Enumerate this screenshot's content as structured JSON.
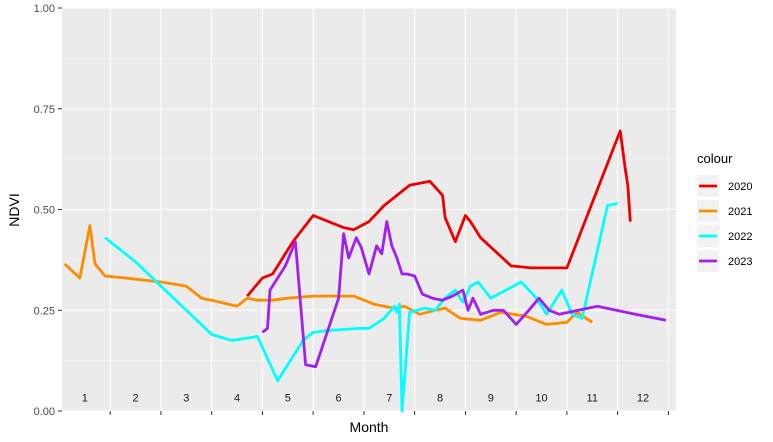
{
  "chart_data": {
    "type": "line",
    "title": "",
    "xlabel": "Month",
    "ylabel": "NDVI",
    "ylim": [
      0,
      1
    ],
    "xlim": [
      0.55,
      12.65
    ],
    "yticks": [
      {
        "value": 0,
        "label": "0.00"
      },
      {
        "value": 0.25,
        "label": "0.25"
      },
      {
        "value": 0.5,
        "label": "0.50"
      },
      {
        "value": 0.75,
        "label": "0.75"
      },
      {
        "value": 1,
        "label": "1.00"
      }
    ],
    "month_labels": [
      "1",
      "2",
      "3",
      "4",
      "5",
      "6",
      "7",
      "8",
      "9",
      "10",
      "11",
      "12"
    ],
    "month_label_y": 0.018,
    "grid": true,
    "legend": {
      "title": "colour",
      "position": "right"
    },
    "series": [
      {
        "name": "2020",
        "color": "#EE0000",
        "x": [
          4.2,
          4.5,
          4.7,
          5.1,
          5.5,
          5.9,
          6.1,
          6.3,
          6.6,
          6.9,
          7.2,
          7.4,
          7.8,
          8.05,
          8.1,
          8.3,
          8.5,
          8.6,
          8.8,
          9.4,
          9.8,
          10.1,
          10.5,
          11.55,
          11.65,
          11.7,
          11.75
        ],
        "y": [
          0.285,
          0.33,
          0.34,
          0.42,
          0.485,
          0.465,
          0.455,
          0.45,
          0.47,
          0.51,
          0.54,
          0.56,
          0.57,
          0.535,
          0.48,
          0.42,
          0.485,
          0.47,
          0.43,
          0.36,
          0.355,
          0.355,
          0.355,
          0.695,
          0.6,
          0.56,
          0.47
        ]
      },
      {
        "name": "2021",
        "color": "#FF8C00",
        "x": [
          0.6,
          0.9,
          1.1,
          1.2,
          1.4,
          1.8,
          2.5,
          3.0,
          3.3,
          3.5,
          4.0,
          4.2,
          4.4,
          4.7,
          5.0,
          5.5,
          5.9,
          6.3,
          6.7,
          7.1,
          7.3,
          7.6,
          7.9,
          8.1,
          8.4,
          8.8,
          9.2,
          9.7,
          10.1,
          10.5,
          10.7,
          11.0
        ],
        "y": [
          0.365,
          0.33,
          0.46,
          0.365,
          0.335,
          0.33,
          0.32,
          0.31,
          0.28,
          0.275,
          0.26,
          0.28,
          0.275,
          0.275,
          0.28,
          0.285,
          0.285,
          0.285,
          0.265,
          0.255,
          0.26,
          0.24,
          0.25,
          0.255,
          0.23,
          0.225,
          0.245,
          0.235,
          0.215,
          0.22,
          0.245,
          0.22
        ]
      },
      {
        "name": "2022",
        "color": "#00FFFF",
        "x": [
          1.4,
          2.0,
          2.5,
          3.0,
          3.5,
          3.9,
          4.4,
          4.8,
          5.3,
          5.5,
          5.8,
          6.4,
          6.6,
          6.9,
          7.1,
          7.15,
          7.2,
          7.25,
          7.4,
          7.55,
          7.7,
          7.9,
          8.1,
          8.3,
          8.45,
          8.6,
          8.75,
          9.0,
          9.3,
          9.6,
          9.9,
          10.1,
          10.4,
          10.6,
          10.8,
          11.3,
          11.5
        ],
        "y": [
          0.43,
          0.37,
          0.31,
          0.25,
          0.19,
          0.175,
          0.185,
          0.075,
          0.175,
          0.195,
          0.2,
          0.205,
          0.205,
          0.23,
          0.26,
          0.245,
          0.265,
          0.0,
          0.245,
          0.25,
          0.255,
          0.25,
          0.28,
          0.3,
          0.27,
          0.31,
          0.32,
          0.28,
          0.3,
          0.32,
          0.28,
          0.24,
          0.3,
          0.24,
          0.23,
          0.51,
          0.515
        ]
      },
      {
        "name": "2023",
        "color": "#A020F0",
        "x": [
          4.5,
          4.6,
          4.65,
          4.95,
          5.15,
          5.35,
          5.55,
          6.0,
          6.1,
          6.2,
          6.35,
          6.45,
          6.6,
          6.75,
          6.85,
          6.95,
          7.05,
          7.15,
          7.25,
          7.35,
          7.5,
          7.65,
          7.85,
          8.05,
          8.25,
          8.45,
          8.55,
          8.65,
          8.8,
          9.05,
          9.25,
          9.5,
          9.75,
          9.95,
          10.15,
          10.35,
          11.1,
          11.85,
          12.45
        ],
        "y": [
          0.195,
          0.205,
          0.3,
          0.36,
          0.42,
          0.115,
          0.11,
          0.28,
          0.44,
          0.38,
          0.43,
          0.405,
          0.34,
          0.41,
          0.39,
          0.47,
          0.41,
          0.38,
          0.34,
          0.34,
          0.335,
          0.29,
          0.28,
          0.275,
          0.285,
          0.3,
          0.25,
          0.28,
          0.24,
          0.25,
          0.25,
          0.215,
          0.25,
          0.28,
          0.25,
          0.24,
          0.26,
          0.24,
          0.225
        ]
      }
    ]
  }
}
